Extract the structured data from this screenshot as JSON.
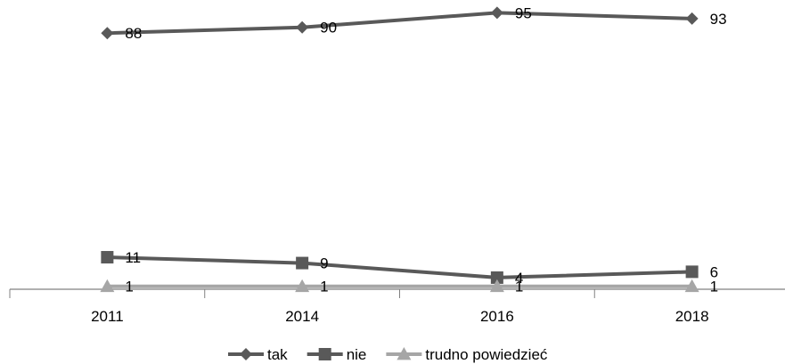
{
  "chart_data": {
    "type": "line",
    "categories": [
      "2011",
      "2014",
      "2016",
      "2018"
    ],
    "series": [
      {
        "name": "tak",
        "values": [
          88,
          90,
          95,
          93
        ],
        "marker": "diamond",
        "color": "#595959"
      },
      {
        "name": "nie",
        "values": [
          11,
          9,
          4,
          6
        ],
        "marker": "square",
        "color": "#595959"
      },
      {
        "name": "trudno powiedzieć",
        "values": [
          1,
          1,
          1,
          1
        ],
        "marker": "triangle",
        "color": "#a6a6a6"
      }
    ],
    "ylim": [
      0,
      100
    ],
    "y_axis_visible": false,
    "grid": false,
    "data_labels": true,
    "legend": "bottom"
  }
}
